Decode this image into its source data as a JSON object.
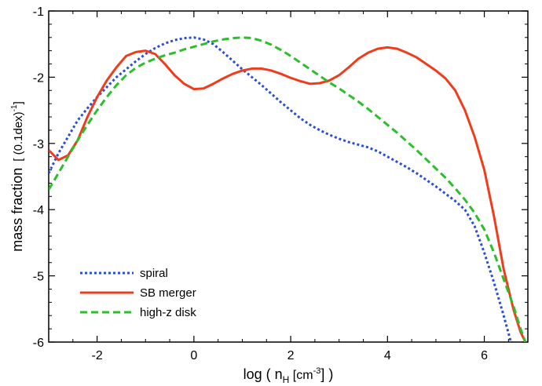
{
  "chart_data": {
    "type": "line",
    "title": "",
    "xlabel": {
      "prefix": "log ( n",
      "sub": "H",
      "middle": " [cm",
      "sup": "-3",
      "suffix": "] )"
    },
    "ylabel": {
      "main": "mass fraction",
      "bracket_open": "[ (0.1dex)",
      "sup": "-1",
      "bracket_close": "]"
    },
    "xlim": [
      -3.0,
      6.9
    ],
    "ylim": [
      -6,
      -1
    ],
    "xticks": [
      -2,
      0,
      2,
      4,
      6
    ],
    "xtick_labels": [
      "-2",
      "0",
      "2",
      "4",
      "6"
    ],
    "yticks": [
      -1,
      -2,
      -3,
      -4,
      -5,
      -6
    ],
    "ytick_labels": [
      "-1",
      "-2",
      "-3",
      "-4",
      "-5",
      "-6"
    ],
    "grid": false,
    "legend_position": "bottom-left",
    "series": [
      {
        "name": "spiral",
        "color": "#2a4fd6",
        "style": "dotted",
        "x": [
          -3.0,
          -2.8,
          -2.6,
          -2.4,
          -2.2,
          -2.0,
          -1.8,
          -1.6,
          -1.4,
          -1.2,
          -1.0,
          -0.8,
          -0.6,
          -0.4,
          -0.2,
          0.0,
          0.2,
          0.4,
          0.6,
          0.8,
          1.0,
          1.2,
          1.4,
          1.6,
          1.8,
          2.0,
          2.2,
          2.4,
          2.6,
          2.8,
          3.0,
          3.2,
          3.4,
          3.6,
          3.8,
          4.0,
          4.2,
          4.4,
          4.6,
          4.8,
          5.0,
          5.2,
          5.4,
          5.6,
          5.8,
          6.0,
          6.2,
          6.4,
          6.55
        ],
        "y": [
          -3.45,
          -3.15,
          -2.9,
          -2.65,
          -2.47,
          -2.3,
          -2.15,
          -2.0,
          -1.88,
          -1.76,
          -1.65,
          -1.56,
          -1.49,
          -1.44,
          -1.41,
          -1.4,
          -1.43,
          -1.5,
          -1.62,
          -1.75,
          -1.88,
          -2.0,
          -2.12,
          -2.25,
          -2.38,
          -2.5,
          -2.62,
          -2.72,
          -2.8,
          -2.87,
          -2.93,
          -2.98,
          -3.02,
          -3.06,
          -3.12,
          -3.2,
          -3.28,
          -3.36,
          -3.45,
          -3.55,
          -3.65,
          -3.76,
          -3.87,
          -4.0,
          -4.25,
          -4.65,
          -5.1,
          -5.6,
          -6.0
        ]
      },
      {
        "name": "SB merger",
        "color": "#f03c1c",
        "style": "solid",
        "x": [
          -3.0,
          -2.8,
          -2.6,
          -2.4,
          -2.2,
          -2.0,
          -1.8,
          -1.6,
          -1.4,
          -1.2,
          -1.0,
          -0.8,
          -0.6,
          -0.4,
          -0.2,
          0.0,
          0.2,
          0.4,
          0.6,
          0.8,
          1.0,
          1.2,
          1.4,
          1.6,
          1.8,
          2.0,
          2.2,
          2.4,
          2.6,
          2.8,
          3.0,
          3.2,
          3.4,
          3.6,
          3.8,
          4.0,
          4.2,
          4.4,
          4.6,
          4.8,
          5.0,
          5.2,
          5.4,
          5.6,
          5.8,
          6.0,
          6.2,
          6.4,
          6.6,
          6.75,
          6.85
        ],
        "y": [
          -3.1,
          -3.25,
          -3.18,
          -2.95,
          -2.6,
          -2.3,
          -2.05,
          -1.85,
          -1.68,
          -1.62,
          -1.6,
          -1.65,
          -1.8,
          -1.97,
          -2.1,
          -2.18,
          -2.17,
          -2.1,
          -2.02,
          -1.95,
          -1.9,
          -1.87,
          -1.87,
          -1.9,
          -1.95,
          -2.01,
          -2.06,
          -2.1,
          -2.09,
          -2.05,
          -1.97,
          -1.85,
          -1.72,
          -1.63,
          -1.57,
          -1.55,
          -1.57,
          -1.63,
          -1.7,
          -1.8,
          -1.9,
          -2.02,
          -2.2,
          -2.5,
          -2.9,
          -3.4,
          -4.1,
          -4.9,
          -5.5,
          -5.85,
          -6.0
        ]
      },
      {
        "name": "high-z disk",
        "color": "#2bbf2b",
        "style": "dashed",
        "x": [
          -3.0,
          -2.8,
          -2.6,
          -2.4,
          -2.2,
          -2.0,
          -1.8,
          -1.6,
          -1.4,
          -1.2,
          -1.0,
          -0.8,
          -0.6,
          -0.4,
          -0.2,
          0.0,
          0.2,
          0.4,
          0.6,
          0.8,
          1.0,
          1.2,
          1.4,
          1.6,
          1.8,
          2.0,
          2.2,
          2.4,
          2.6,
          2.8,
          3.0,
          3.2,
          3.4,
          3.6,
          3.8,
          4.0,
          4.2,
          4.4,
          4.6,
          4.8,
          5.0,
          5.2,
          5.4,
          5.6,
          5.8,
          6.0,
          6.2,
          6.4,
          6.6,
          6.75,
          6.85
        ],
        "y": [
          -3.7,
          -3.45,
          -3.2,
          -2.95,
          -2.72,
          -2.5,
          -2.3,
          -2.12,
          -1.97,
          -1.86,
          -1.78,
          -1.72,
          -1.67,
          -1.63,
          -1.58,
          -1.54,
          -1.5,
          -1.46,
          -1.43,
          -1.41,
          -1.4,
          -1.41,
          -1.45,
          -1.51,
          -1.59,
          -1.68,
          -1.78,
          -1.88,
          -1.98,
          -2.08,
          -2.17,
          -2.27,
          -2.37,
          -2.48,
          -2.6,
          -2.72,
          -2.84,
          -2.97,
          -3.1,
          -3.24,
          -3.38,
          -3.52,
          -3.68,
          -3.85,
          -4.05,
          -4.3,
          -4.65,
          -5.05,
          -5.45,
          -5.8,
          -6.0
        ]
      }
    ]
  }
}
